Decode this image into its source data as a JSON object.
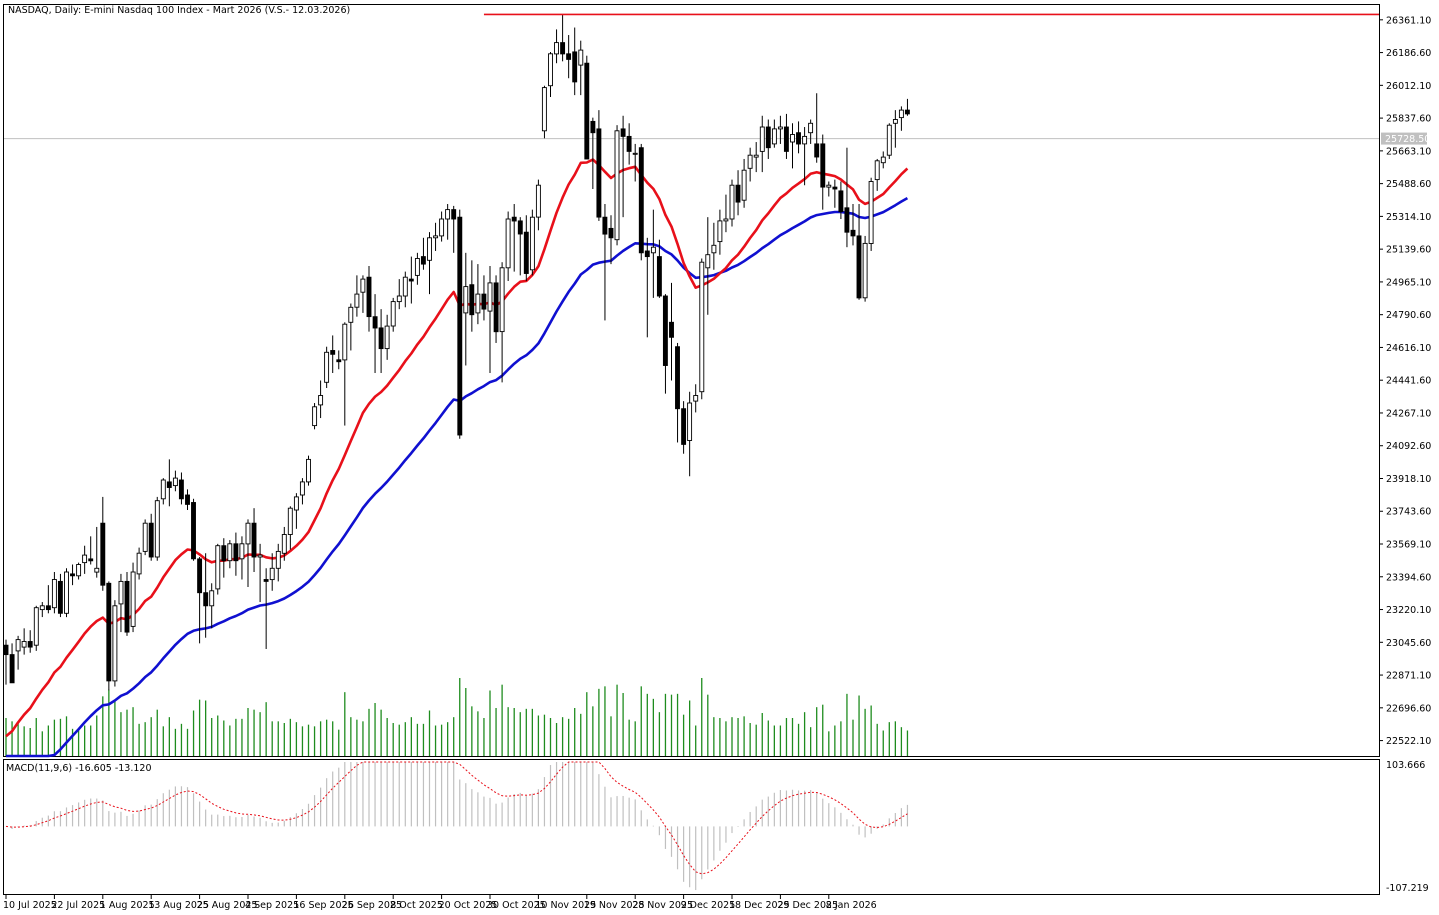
{
  "header": {
    "title": "NASDAQ, Daily:  E-mini Nasdaq 100 Index - Mart 2026 (V.S.- 12.03.2026)",
    "macd_label": "MACD(11,9,6) -16.605 -13.120",
    "current_price_tag": "25728.50"
  },
  "colors": {
    "background": "#ffffff",
    "frame": "#000000",
    "bull_candle_body": "#ffffff",
    "bear_candle_body": "#000000",
    "candle_wick": "#000000",
    "ma_fast": "#e8101a",
    "ma_slow": "#1010d0",
    "volume_bar": "#1e8c1e",
    "resistance_line": "#e8101a",
    "current_price_line": "#c0c0c0",
    "macd_histogram": "#c0c0c0",
    "macd_signal": "#e8101a"
  },
  "chart_data": {
    "type": "candlestick",
    "price_axis_ticks": [
      "26361.10",
      "26186.60",
      "26012.10",
      "25837.60",
      "25663.10",
      "25488.60",
      "25314.10",
      "25139.60",
      "24965.10",
      "24790.60",
      "24616.10",
      "24441.60",
      "24267.10",
      "24092.60",
      "23918.10",
      "23743.60",
      "23569.10",
      "23394.60",
      "23220.10",
      "23045.60",
      "22871.10",
      "22696.60",
      "22522.10"
    ],
    "price_range": [
      22440,
      26440
    ],
    "macd_axis_ticks": [
      "103.666",
      "-107.219"
    ],
    "macd_range": [
      -107.219,
      103.666
    ],
    "date_ticks": [
      {
        "label": "10 Jul 2025",
        "index": 0
      },
      {
        "label": "22 Jul 2025",
        "index": 8
      },
      {
        "label": "1 Aug 2025",
        "index": 16
      },
      {
        "label": "13 Aug 2025",
        "index": 24
      },
      {
        "label": "25 Aug 2025",
        "index": 32
      },
      {
        "label": "4 Sep 2025",
        "index": 40
      },
      {
        "label": "16 Sep 2025",
        "index": 48
      },
      {
        "label": "26 Sep 2025",
        "index": 56
      },
      {
        "label": "8 Oct 2025",
        "index": 64
      },
      {
        "label": "20 Oct 2025",
        "index": 72
      },
      {
        "label": "30 Oct 2025",
        "index": 80
      },
      {
        "label": "10 Nov 2025",
        "index": 88
      },
      {
        "label": "19 Nov 2025",
        "index": 96
      },
      {
        "label": "28 Nov 2025",
        "index": 104
      },
      {
        "label": "9 Dec 2025",
        "index": 112
      },
      {
        "label": "18 Dec 2025",
        "index": 120
      },
      {
        "label": "29 Dec 2025",
        "index": 128
      },
      {
        "label": "8 Jan 2026",
        "index": 136
      }
    ],
    "current_price": 25728.5,
    "resistance_level": 26390,
    "resistance_start_index": 79,
    "candles": [
      {
        "o": 23030,
        "h": 23060,
        "l": 22820,
        "c": 22980
      },
      {
        "o": 22980,
        "h": 23040,
        "l": 22840,
        "c": 22830
      },
      {
        "o": 23000,
        "h": 23080,
        "l": 22900,
        "c": 23060
      },
      {
        "o": 23020,
        "h": 23120,
        "l": 22980,
        "c": 23050
      },
      {
        "o": 23050,
        "h": 23110,
        "l": 22990,
        "c": 23020
      },
      {
        "o": 23030,
        "h": 23240,
        "l": 23000,
        "c": 23230
      },
      {
        "o": 23220,
        "h": 23260,
        "l": 23180,
        "c": 23240
      },
      {
        "o": 23240,
        "h": 23350,
        "l": 23200,
        "c": 23220
      },
      {
        "o": 23230,
        "h": 23420,
        "l": 23200,
        "c": 23380
      },
      {
        "o": 23370,
        "h": 23410,
        "l": 23180,
        "c": 23200
      },
      {
        "o": 23200,
        "h": 23440,
        "l": 23180,
        "c": 23420
      },
      {
        "o": 23410,
        "h": 23460,
        "l": 23350,
        "c": 23400
      },
      {
        "o": 23400,
        "h": 23470,
        "l": 23380,
        "c": 23460
      },
      {
        "o": 23470,
        "h": 23560,
        "l": 23410,
        "c": 23510
      },
      {
        "o": 23490,
        "h": 23610,
        "l": 23460,
        "c": 23480
      },
      {
        "o": 23420,
        "h": 23660,
        "l": 23390,
        "c": 23440
      },
      {
        "o": 23680,
        "h": 23820,
        "l": 23320,
        "c": 23350
      },
      {
        "o": 23360,
        "h": 23370,
        "l": 22790,
        "c": 22840
      },
      {
        "o": 22840,
        "h": 23270,
        "l": 22810,
        "c": 23240
      },
      {
        "o": 23250,
        "h": 23410,
        "l": 23100,
        "c": 23370
      },
      {
        "o": 23370,
        "h": 23420,
        "l": 23080,
        "c": 23100
      },
      {
        "o": 23130,
        "h": 23470,
        "l": 23100,
        "c": 23420
      },
      {
        "o": 23410,
        "h": 23550,
        "l": 23380,
        "c": 23520
      },
      {
        "o": 23530,
        "h": 23700,
        "l": 23510,
        "c": 23680
      },
      {
        "o": 23680,
        "h": 23730,
        "l": 23480,
        "c": 23500
      },
      {
        "o": 23500,
        "h": 23820,
        "l": 23480,
        "c": 23800
      },
      {
        "o": 23810,
        "h": 23920,
        "l": 23780,
        "c": 23910
      },
      {
        "o": 23900,
        "h": 24020,
        "l": 23770,
        "c": 23870
      },
      {
        "o": 23880,
        "h": 23960,
        "l": 23850,
        "c": 23920
      },
      {
        "o": 23910,
        "h": 23950,
        "l": 23780,
        "c": 23810
      },
      {
        "o": 23830,
        "h": 23860,
        "l": 23750,
        "c": 23780
      },
      {
        "o": 23790,
        "h": 23810,
        "l": 23480,
        "c": 23490
      },
      {
        "o": 23490,
        "h": 23500,
        "l": 23040,
        "c": 23310
      },
      {
        "o": 23310,
        "h": 23520,
        "l": 23070,
        "c": 23240
      },
      {
        "o": 23240,
        "h": 23360,
        "l": 23120,
        "c": 23320
      },
      {
        "o": 23330,
        "h": 23570,
        "l": 23300,
        "c": 23560
      },
      {
        "o": 23560,
        "h": 23600,
        "l": 23390,
        "c": 23480
      },
      {
        "o": 23480,
        "h": 23590,
        "l": 23440,
        "c": 23570
      },
      {
        "o": 23570,
        "h": 23630,
        "l": 23400,
        "c": 23480
      },
      {
        "o": 23490,
        "h": 23610,
        "l": 23380,
        "c": 23570
      },
      {
        "o": 23570,
        "h": 23700,
        "l": 23340,
        "c": 23680
      },
      {
        "o": 23680,
        "h": 23760,
        "l": 23420,
        "c": 23500
      },
      {
        "o": 23500,
        "h": 23570,
        "l": 23260,
        "c": 23510
      },
      {
        "o": 23380,
        "h": 23440,
        "l": 23010,
        "c": 23370
      },
      {
        "o": 23380,
        "h": 23520,
        "l": 23320,
        "c": 23440
      },
      {
        "o": 23440,
        "h": 23570,
        "l": 23370,
        "c": 23530
      },
      {
        "o": 23520,
        "h": 23660,
        "l": 23480,
        "c": 23620
      },
      {
        "o": 23620,
        "h": 23770,
        "l": 23540,
        "c": 23760
      },
      {
        "o": 23750,
        "h": 23840,
        "l": 23650,
        "c": 23820
      },
      {
        "o": 23830,
        "h": 23920,
        "l": 23780,
        "c": 23900
      },
      {
        "o": 23900,
        "h": 24040,
        "l": 23880,
        "c": 24020
      },
      {
        "o": 24200,
        "h": 24320,
        "l": 24180,
        "c": 24300
      },
      {
        "o": 24310,
        "h": 24440,
        "l": 24240,
        "c": 24360
      },
      {
        "o": 24430,
        "h": 24620,
        "l": 24400,
        "c": 24590
      },
      {
        "o": 24600,
        "h": 24680,
        "l": 24480,
        "c": 24580
      },
      {
        "o": 24550,
        "h": 24600,
        "l": 24500,
        "c": 24540
      },
      {
        "o": 24550,
        "h": 24750,
        "l": 24200,
        "c": 24740
      },
      {
        "o": 24750,
        "h": 24850,
        "l": 24600,
        "c": 24830
      },
      {
        "o": 24830,
        "h": 25000,
        "l": 24780,
        "c": 24900
      },
      {
        "o": 24910,
        "h": 25000,
        "l": 24800,
        "c": 24980
      },
      {
        "o": 24990,
        "h": 25050,
        "l": 24700,
        "c": 24780
      },
      {
        "o": 24780,
        "h": 24900,
        "l": 24480,
        "c": 24720
      },
      {
        "o": 24720,
        "h": 24820,
        "l": 24480,
        "c": 24610
      },
      {
        "o": 24610,
        "h": 24790,
        "l": 24550,
        "c": 24730
      },
      {
        "o": 24730,
        "h": 24880,
        "l": 24700,
        "c": 24860
      },
      {
        "o": 24860,
        "h": 24980,
        "l": 24820,
        "c": 24890
      },
      {
        "o": 24890,
        "h": 25020,
        "l": 24830,
        "c": 24990
      },
      {
        "o": 24980,
        "h": 25100,
        "l": 24850,
        "c": 24970
      },
      {
        "o": 25000,
        "h": 25120,
        "l": 24950,
        "c": 25090
      },
      {
        "o": 25100,
        "h": 25200,
        "l": 25030,
        "c": 25060
      },
      {
        "o": 25080,
        "h": 25230,
        "l": 24900,
        "c": 25200
      },
      {
        "o": 25200,
        "h": 25280,
        "l": 25130,
        "c": 25210
      },
      {
        "o": 25210,
        "h": 25340,
        "l": 25180,
        "c": 25300
      },
      {
        "o": 25300,
        "h": 25380,
        "l": 25190,
        "c": 25350
      },
      {
        "o": 25350,
        "h": 25370,
        "l": 25120,
        "c": 25300
      },
      {
        "o": 25310,
        "h": 25350,
        "l": 24130,
        "c": 24150
      },
      {
        "o": 24800,
        "h": 25120,
        "l": 24520,
        "c": 24940
      },
      {
        "o": 24950,
        "h": 25080,
        "l": 24700,
        "c": 24790
      },
      {
        "o": 24800,
        "h": 25060,
        "l": 24740,
        "c": 24900
      },
      {
        "o": 24900,
        "h": 25000,
        "l": 24760,
        "c": 24820
      },
      {
        "o": 24810,
        "h": 25050,
        "l": 24480,
        "c": 24960
      },
      {
        "o": 24960,
        "h": 25000,
        "l": 24640,
        "c": 24700
      },
      {
        "o": 24700,
        "h": 25070,
        "l": 24430,
        "c": 25040
      },
      {
        "o": 25040,
        "h": 25340,
        "l": 24970,
        "c": 25300
      },
      {
        "o": 25310,
        "h": 25380,
        "l": 25020,
        "c": 25290
      },
      {
        "o": 25290,
        "h": 25310,
        "l": 25000,
        "c": 25220
      },
      {
        "o": 25230,
        "h": 25320,
        "l": 24970,
        "c": 25010
      },
      {
        "o": 25030,
        "h": 25350,
        "l": 25000,
        "c": 25310
      },
      {
        "o": 25310,
        "h": 25510,
        "l": 25240,
        "c": 25480
      },
      {
        "o": 25770,
        "h": 26010,
        "l": 25730,
        "c": 26000
      },
      {
        "o": 26010,
        "h": 26190,
        "l": 25950,
        "c": 26180
      },
      {
        "o": 26180,
        "h": 26310,
        "l": 26130,
        "c": 26240
      },
      {
        "o": 26240,
        "h": 26390,
        "l": 26140,
        "c": 26180
      },
      {
        "o": 26180,
        "h": 26280,
        "l": 26050,
        "c": 26150
      },
      {
        "o": 26190,
        "h": 26320,
        "l": 25960,
        "c": 26030
      },
      {
        "o": 26120,
        "h": 26250,
        "l": 25960,
        "c": 26200
      },
      {
        "o": 26130,
        "h": 26170,
        "l": 25620,
        "c": 25620
      },
      {
        "o": 25820,
        "h": 25840,
        "l": 25460,
        "c": 25760
      },
      {
        "o": 25780,
        "h": 25880,
        "l": 25290,
        "c": 25310
      },
      {
        "o": 25310,
        "h": 25380,
        "l": 24760,
        "c": 25220
      },
      {
        "o": 25250,
        "h": 25320,
        "l": 25060,
        "c": 25200
      },
      {
        "o": 25190,
        "h": 25800,
        "l": 25160,
        "c": 25770
      },
      {
        "o": 25780,
        "h": 25850,
        "l": 25310,
        "c": 25740
      },
      {
        "o": 25740,
        "h": 25810,
        "l": 25590,
        "c": 25660
      },
      {
        "o": 25650,
        "h": 25700,
        "l": 25500,
        "c": 25650
      },
      {
        "o": 25680,
        "h": 25700,
        "l": 25080,
        "c": 25120
      },
      {
        "o": 25130,
        "h": 25200,
        "l": 24670,
        "c": 25100
      },
      {
        "o": 25120,
        "h": 25350,
        "l": 24880,
        "c": 25150
      },
      {
        "o": 25100,
        "h": 25190,
        "l": 24880,
        "c": 24890
      },
      {
        "o": 24890,
        "h": 24900,
        "l": 24370,
        "c": 24520
      },
      {
        "o": 24750,
        "h": 24960,
        "l": 24440,
        "c": 24670
      },
      {
        "o": 24620,
        "h": 24640,
        "l": 24110,
        "c": 24290
      },
      {
        "o": 24290,
        "h": 24330,
        "l": 24050,
        "c": 24100
      },
      {
        "o": 24120,
        "h": 24380,
        "l": 23930,
        "c": 24320
      },
      {
        "o": 24330,
        "h": 24420,
        "l": 24270,
        "c": 24360
      },
      {
        "o": 24380,
        "h": 25090,
        "l": 24340,
        "c": 25070
      },
      {
        "o": 25040,
        "h": 25310,
        "l": 24790,
        "c": 25110
      },
      {
        "o": 25120,
        "h": 25280,
        "l": 25030,
        "c": 25160
      },
      {
        "o": 25180,
        "h": 25350,
        "l": 25110,
        "c": 25290
      },
      {
        "o": 25290,
        "h": 25430,
        "l": 25230,
        "c": 25300
      },
      {
        "o": 25300,
        "h": 25510,
        "l": 25260,
        "c": 25480
      },
      {
        "o": 25480,
        "h": 25560,
        "l": 25320,
        "c": 25390
      },
      {
        "o": 25400,
        "h": 25620,
        "l": 25360,
        "c": 25560
      },
      {
        "o": 25570,
        "h": 25680,
        "l": 25500,
        "c": 25640
      },
      {
        "o": 25630,
        "h": 25710,
        "l": 25550,
        "c": 25640
      },
      {
        "o": 25660,
        "h": 25850,
        "l": 25550,
        "c": 25790
      },
      {
        "o": 25790,
        "h": 25830,
        "l": 25620,
        "c": 25680
      },
      {
        "o": 25700,
        "h": 25830,
        "l": 25680,
        "c": 25780
      },
      {
        "o": 25780,
        "h": 25850,
        "l": 25700,
        "c": 25790
      },
      {
        "o": 25790,
        "h": 25860,
        "l": 25620,
        "c": 25660
      },
      {
        "o": 25710,
        "h": 25810,
        "l": 25570,
        "c": 25750
      },
      {
        "o": 25760,
        "h": 25820,
        "l": 25650,
        "c": 25700
      },
      {
        "o": 25700,
        "h": 25790,
        "l": 25480,
        "c": 25740
      },
      {
        "o": 25760,
        "h": 25830,
        "l": 25700,
        "c": 25810
      },
      {
        "o": 25700,
        "h": 25970,
        "l": 25600,
        "c": 25630
      },
      {
        "o": 25700,
        "h": 25750,
        "l": 25350,
        "c": 25470
      },
      {
        "o": 25470,
        "h": 25500,
        "l": 25420,
        "c": 25480
      },
      {
        "o": 25470,
        "h": 25510,
        "l": 25360,
        "c": 25460
      },
      {
        "o": 25450,
        "h": 25500,
        "l": 25300,
        "c": 25340
      },
      {
        "o": 25360,
        "h": 25680,
        "l": 25150,
        "c": 25230
      },
      {
        "o": 25240,
        "h": 25380,
        "l": 25160,
        "c": 25210
      },
      {
        "o": 25210,
        "h": 25380,
        "l": 24870,
        "c": 24880
      },
      {
        "o": 24880,
        "h": 25210,
        "l": 24860,
        "c": 25170
      },
      {
        "o": 25170,
        "h": 25520,
        "l": 25130,
        "c": 25500
      },
      {
        "o": 25510,
        "h": 25620,
        "l": 25450,
        "c": 25610
      },
      {
        "o": 25600,
        "h": 25660,
        "l": 25570,
        "c": 25630
      },
      {
        "o": 25640,
        "h": 25810,
        "l": 25620,
        "c": 25800
      },
      {
        "o": 25810,
        "h": 25880,
        "l": 25680,
        "c": 25830
      },
      {
        "o": 25840,
        "h": 25900,
        "l": 25770,
        "c": 25880
      },
      {
        "o": 25880,
        "h": 25940,
        "l": 25850,
        "c": 25860
      }
    ]
  }
}
